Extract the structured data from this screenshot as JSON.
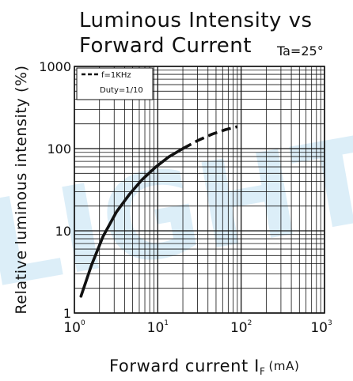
{
  "chart_data": {
    "type": "line",
    "title_line1": "Luminous Intensity vs",
    "title_line2": "Forward Current",
    "condition": "Ta=25°",
    "xlabel_main": "Forward current I",
    "xlabel_sub": "F",
    "xlabel_unit": "(mA)",
    "ylabel": "Relative luminous intensity (%)",
    "x_scale": "log",
    "y_scale": "log",
    "xlim": [
      1,
      1000
    ],
    "ylim": [
      1,
      1000
    ],
    "grid": true,
    "x_ticks": [
      {
        "value": 1,
        "base": "10",
        "exp": "0"
      },
      {
        "value": 10,
        "base": "10",
        "exp": "1"
      },
      {
        "value": 100,
        "base": "10",
        "exp": "2"
      },
      {
        "value": 1000,
        "base": "10",
        "exp": "3"
      }
    ],
    "y_ticks": [
      {
        "value": 1,
        "label": "1"
      },
      {
        "value": 10,
        "label": "10"
      },
      {
        "value": 100,
        "label": "100"
      },
      {
        "value": 1000,
        "label": "1000"
      }
    ],
    "legend": {
      "placement": "top-left",
      "line1": "f=1KHz",
      "line2": "Duty=1/10"
    },
    "series": [
      {
        "style": "solid",
        "x": [
          1.2,
          1.6,
          2.2,
          3.2,
          4.6,
          6.5,
          9.5,
          13.5,
          20
        ],
        "y": [
          1.6,
          3.8,
          8.5,
          17,
          28,
          42,
          60,
          79,
          100
        ]
      },
      {
        "style": "dashed",
        "x": [
          20,
          30,
          45,
          65,
          90
        ],
        "y": [
          100,
          125,
          150,
          170,
          185
        ]
      }
    ]
  },
  "watermark": "LIGHT",
  "colors": {
    "line": "#111111",
    "grid": "#111111",
    "watermark": "#d4eaf7"
  }
}
